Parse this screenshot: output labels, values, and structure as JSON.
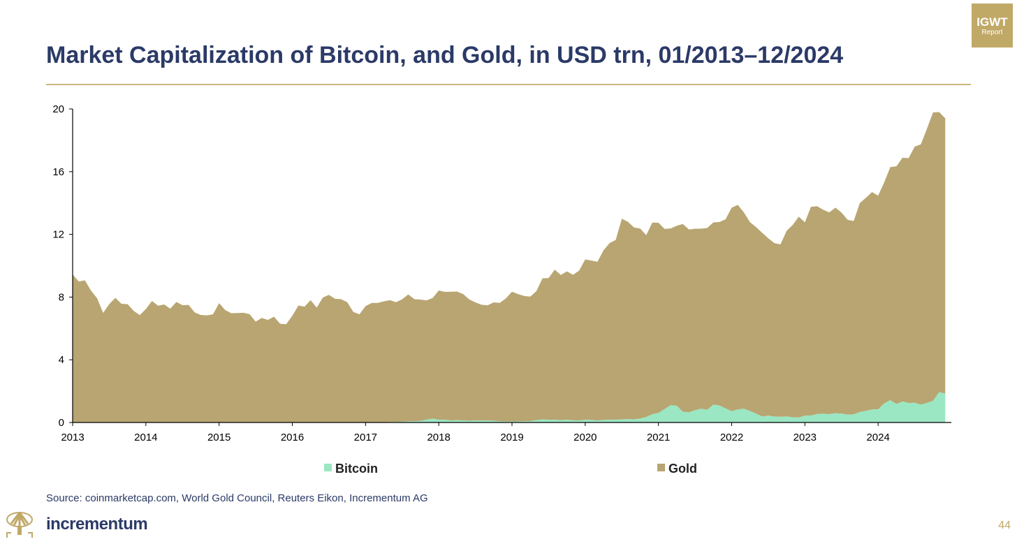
{
  "badge": {
    "line1": "IGWT",
    "line2": "Report"
  },
  "title": "Market Capitalization of Bitcoin, and Gold, in USD trn, 01/2013–12/2024",
  "source": "Source: coinmarketcap.com, World Gold Council, Reuters Eikon, Incrementum AG",
  "brand": "incrementum",
  "page_number": "44",
  "colors": {
    "bitcoin": "#9be6c3",
    "gold": "#b8a571",
    "title": "#2b3a67",
    "accent": "#c0a867"
  },
  "chart_data": {
    "type": "area",
    "stacked": true,
    "title": "Market Capitalization of Bitcoin, and Gold, in USD trn, 01/2013–12/2024",
    "xlabel": "",
    "ylabel": "",
    "x_start": "2013-01",
    "x_end": "2024-12",
    "frequency": "monthly",
    "xlim": [
      2013,
      2025
    ],
    "ylim": [
      0,
      20
    ],
    "x_ticks": [
      "2013",
      "2014",
      "2015",
      "2016",
      "2017",
      "2018",
      "2019",
      "2020",
      "2021",
      "2022",
      "2023",
      "2024"
    ],
    "y_ticks": [
      "0",
      "4",
      "8",
      "12",
      "16",
      "20"
    ],
    "legend_position": "bottom",
    "series": [
      {
        "name": "Bitcoin",
        "color": "#9be6c3",
        "values": [
          0.0,
          0.0,
          0.0,
          0.0,
          0.0,
          0.0,
          0.0,
          0.0,
          0.0,
          0.0,
          0.01,
          0.01,
          0.01,
          0.01,
          0.01,
          0.01,
          0.01,
          0.01,
          0.01,
          0.01,
          0.01,
          0.01,
          0.01,
          0.0,
          0.0,
          0.0,
          0.0,
          0.0,
          0.0,
          0.0,
          0.0,
          0.0,
          0.0,
          0.0,
          0.0,
          0.01,
          0.01,
          0.01,
          0.01,
          0.01,
          0.01,
          0.01,
          0.01,
          0.01,
          0.01,
          0.01,
          0.01,
          0.02,
          0.02,
          0.02,
          0.02,
          0.02,
          0.03,
          0.04,
          0.05,
          0.07,
          0.08,
          0.1,
          0.18,
          0.25,
          0.17,
          0.18,
          0.12,
          0.15,
          0.13,
          0.11,
          0.13,
          0.12,
          0.12,
          0.11,
          0.07,
          0.06,
          0.06,
          0.07,
          0.07,
          0.09,
          0.15,
          0.19,
          0.18,
          0.17,
          0.15,
          0.17,
          0.14,
          0.13,
          0.17,
          0.16,
          0.12,
          0.16,
          0.17,
          0.17,
          0.2,
          0.21,
          0.2,
          0.25,
          0.35,
          0.53,
          0.61,
          0.85,
          1.1,
          1.07,
          0.68,
          0.65,
          0.78,
          0.88,
          0.81,
          1.14,
          1.08,
          0.9,
          0.72,
          0.83,
          0.88,
          0.73,
          0.57,
          0.38,
          0.44,
          0.38,
          0.36,
          0.39,
          0.33,
          0.32,
          0.44,
          0.44,
          0.54,
          0.56,
          0.53,
          0.59,
          0.57,
          0.5,
          0.52,
          0.67,
          0.74,
          0.83,
          0.84,
          1.22,
          1.42,
          1.18,
          1.34,
          1.24,
          1.26,
          1.14,
          1.25,
          1.38,
          1.93,
          1.85
        ]
      },
      {
        "name": "Gold",
        "color": "#b8a571",
        "values": [
          9.45,
          8.99,
          9.07,
          8.42,
          7.93,
          6.99,
          7.55,
          7.95,
          7.57,
          7.55,
          7.11,
          6.84,
          7.23,
          7.74,
          7.44,
          7.52,
          7.25,
          7.68,
          7.47,
          7.49,
          7.01,
          6.85,
          6.82,
          6.9,
          7.61,
          7.17,
          6.97,
          6.98,
          7.0,
          6.91,
          6.43,
          6.67,
          6.54,
          6.75,
          6.3,
          6.26,
          6.8,
          7.45,
          7.38,
          7.79,
          7.32,
          7.96,
          8.13,
          7.88,
          7.86,
          7.66,
          7.04,
          6.88,
          7.4,
          7.6,
          7.61,
          7.71,
          7.77,
          7.63,
          7.81,
          8.1,
          7.79,
          7.74,
          7.61,
          7.69,
          8.25,
          8.15,
          8.22,
          8.2,
          8.06,
          7.74,
          7.53,
          7.39,
          7.35,
          7.55,
          7.56,
          7.86,
          8.28,
          8.12,
          8.0,
          7.94,
          8.23,
          9.01,
          9.03,
          9.58,
          9.26,
          9.47,
          9.28,
          9.56,
          10.23,
          10.17,
          10.13,
          10.82,
          11.28,
          11.47,
          12.8,
          12.59,
          12.24,
          12.12,
          11.6,
          12.22,
          12.13,
          11.5,
          11.28,
          11.48,
          11.98,
          11.66,
          11.58,
          11.48,
          11.6,
          11.62,
          11.71,
          12.06,
          12.98,
          13.05,
          12.52,
          12.05,
          11.89,
          11.72,
          11.31,
          11.06,
          11.0,
          11.83,
          12.27,
          12.81,
          12.33,
          13.32,
          13.26,
          13.01,
          12.87,
          13.11,
          12.82,
          12.43,
          12.33,
          13.33,
          13.59,
          13.87,
          13.63,
          14.1,
          14.87,
          15.16,
          15.55,
          15.62,
          16.34,
          16.6,
          17.48,
          18.4,
          17.87,
          17.55
        ]
      }
    ]
  }
}
